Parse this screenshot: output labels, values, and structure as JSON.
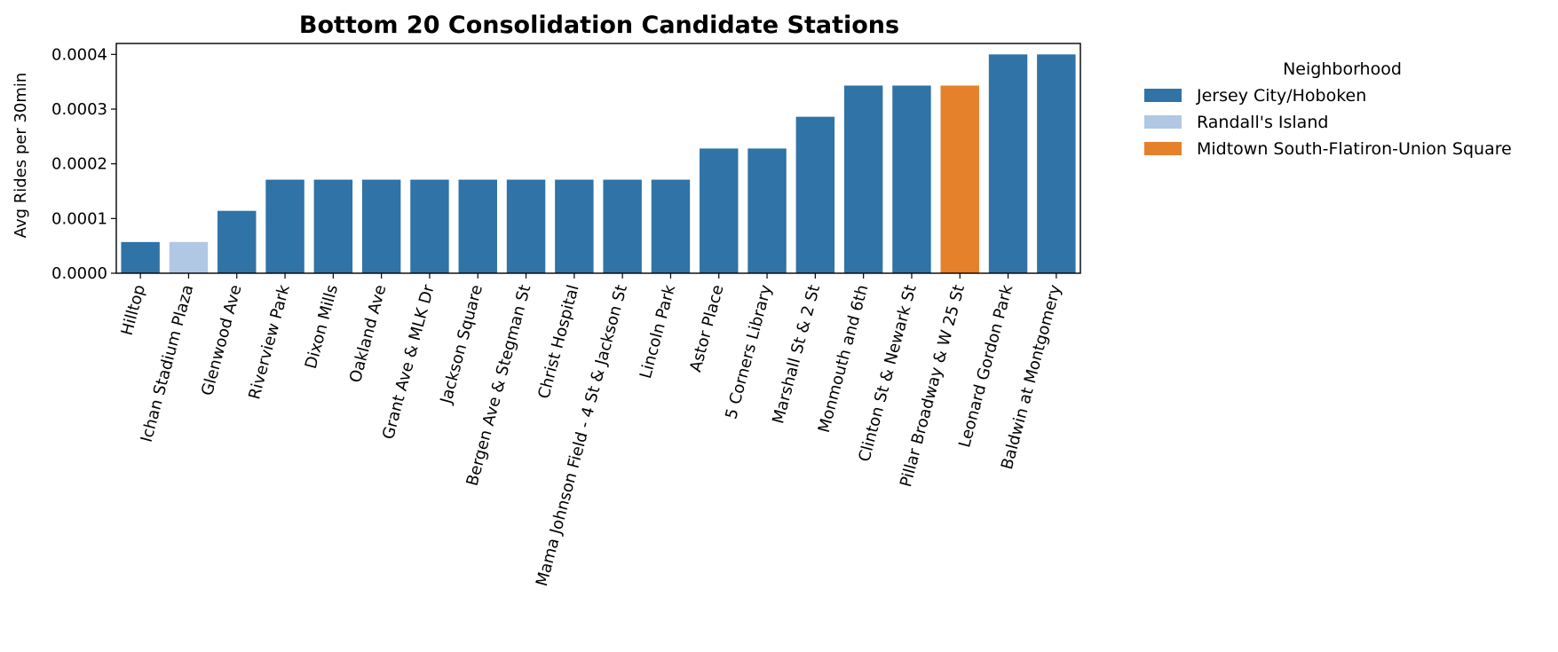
{
  "chart_data": {
    "type": "bar",
    "title": "Bottom 20 Consolidation Candidate Stations",
    "xlabel": "",
    "ylabel": "Avg Rides per 30min",
    "ylim": [
      0,
      0.00042
    ],
    "yticks": [
      "0.0000",
      "0.0001",
      "0.0002",
      "0.0003",
      "0.0004"
    ],
    "ytick_values": [
      0,
      0.0001,
      0.0002,
      0.0003,
      0.0004
    ],
    "categories": [
      "Hilltop",
      "Ichan Stadium Plaza",
      "Glenwood Ave",
      "Riverview Park",
      "Dixon Mills",
      "Oakland Ave",
      "Grant Ave & MLK Dr",
      "Jackson Square",
      "Bergen Ave & Stegman St",
      "Christ Hospital",
      "Mama Johnson Field - 4 St & Jackson St",
      "Lincoln Park",
      "Astor Place",
      "5 Corners Library",
      "Marshall St & 2 St",
      "Monmouth and 6th",
      "Clinton St & Newark St",
      "Pillar Broadway & W 25 St",
      "Leonard Gordon Park",
      "Baldwin at Montgomery"
    ],
    "values": [
      5.7e-05,
      5.7e-05,
      0.000114,
      0.000171,
      0.000171,
      0.000171,
      0.000171,
      0.000171,
      0.000171,
      0.000171,
      0.000171,
      0.000171,
      0.000228,
      0.000228,
      0.000286,
      0.000343,
      0.000343,
      0.000343,
      0.0004,
      0.0004
    ],
    "hue": [
      "Jersey City/Hoboken",
      "Randall's Island",
      "Jersey City/Hoboken",
      "Jersey City/Hoboken",
      "Jersey City/Hoboken",
      "Jersey City/Hoboken",
      "Jersey City/Hoboken",
      "Jersey City/Hoboken",
      "Jersey City/Hoboken",
      "Jersey City/Hoboken",
      "Jersey City/Hoboken",
      "Jersey City/Hoboken",
      "Jersey City/Hoboken",
      "Jersey City/Hoboken",
      "Jersey City/Hoboken",
      "Jersey City/Hoboken",
      "Jersey City/Hoboken",
      "Midtown South-Flatiron-Union Square",
      "Jersey City/Hoboken",
      "Jersey City/Hoboken"
    ],
    "legend": {
      "title": "Neighborhood",
      "placement": "outside-right",
      "entries": [
        {
          "name": "Jersey City/Hoboken",
          "color": "#2f73a7"
        },
        {
          "name": "Randall's Island",
          "color": "#b0c8e3"
        },
        {
          "name": "Midtown South-Flatiron-Union Square",
          "color": "#e5802b"
        }
      ]
    },
    "grid": false
  }
}
